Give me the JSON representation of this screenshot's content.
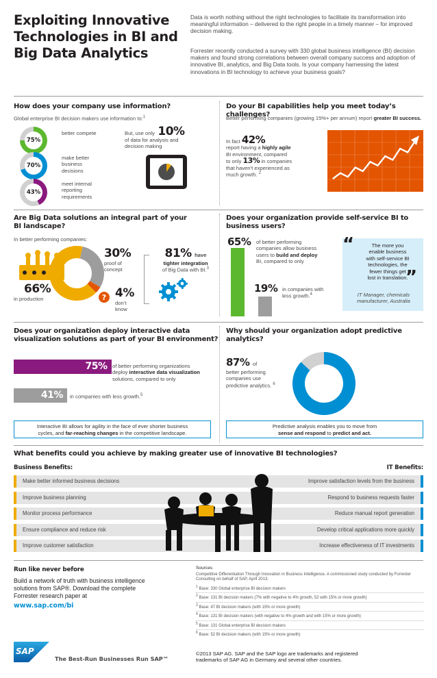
{
  "header": {
    "title_lines": [
      "Exploiting Innovative",
      "Technologies in BI and",
      "Big Data Analytics"
    ],
    "intro_1": "Data is worth nothing without the right technologies to facilitate its transformation into meaningful information – delivered to the right people in a timely manner – for improved decision making.",
    "intro_2": "Forrester recently conducted a survey with 330 global business intelligence (BI) decision makers and found strong correlations between overall company success and adoption of innovative BI, analytics, and Big Data tools. Is your company harnessing the latest innovations in BI technology to achieve your business goals?"
  },
  "s1": {
    "heading": "How does your company use information?",
    "sub": "Global enterprise BI decision makers use information to:",
    "sup": "1",
    "rings": [
      {
        "pct": "75%",
        "value": 75,
        "label": "better compete"
      },
      {
        "pct": "70%",
        "value": 70,
        "label": "make better business decisions"
      },
      {
        "pct": "43%",
        "value": 43,
        "label": "meet internal reporting requirements"
      }
    ],
    "but_prefix": "But, use only",
    "but_pct": "10%",
    "but_rest": "of data for analysis and decision making",
    "tablet_value": 10
  },
  "s2": {
    "heading": "Do your BI capabilities help you meet today’s challenges?",
    "sub_pre": "Better performing companies (growing 15%+ per annum) report",
    "sub_bold": "greater BI success.",
    "infact": "In fact",
    "pct1": "42%",
    "line1_pre": "report having a",
    "line1_bold": "highly agile",
    "line2": "BI environment, compared",
    "line3_pre": "to only",
    "pct2": "13%",
    "line3_post": "in companies",
    "line4": "that haven’t experienced as",
    "line5": "much growth.",
    "sup": "2",
    "trend": [
      4,
      7,
      5,
      10,
      8,
      13,
      11,
      16,
      14,
      20,
      18,
      24
    ]
  },
  "s3": {
    "heading_lines": [
      "Are Big Data solutions an integral part of your",
      "BI landscape?"
    ],
    "sub": "In better performing companies:",
    "pct_prod": "66%",
    "lbl_prod": "in production",
    "pct_poc": "30%",
    "lbl_poc_1": "proof of",
    "lbl_poc_2": "concept",
    "pct_dk": "4%",
    "lbl_dk_1": "don’t",
    "lbl_dk_2": "know",
    "pct_have": "81%",
    "have_word": "have",
    "have_bold": "tighter integration",
    "have_rest": "of Big Data with BI.",
    "sup": "3",
    "donut": [
      66,
      30,
      4
    ]
  },
  "s4": {
    "heading_lines": [
      "Does your organization provide self-service BI to",
      "business users?"
    ],
    "pct_a": "65%",
    "text_a_1": "of better performing",
    "text_a_2": "companies allow business",
    "text_a_3_pre": "users to",
    "text_a_3_bold": "build and deploy",
    "text_a_4": "BI, compared to only",
    "pct_b": "19%",
    "text_b_1": "in companies with",
    "text_b_2": "less growth.",
    "sup": "4",
    "bars": [
      65,
      19
    ],
    "quote_lines": [
      "The more you",
      "enable business",
      "with self-service BI",
      "technologies, the",
      "fewer things get",
      "lost in translation."
    ],
    "quote_author_1": "IT Manager, chemicals",
    "quote_author_2": "manufacturer, Australia"
  },
  "s5": {
    "heading_lines": [
      "Does your organization deploy interactive data",
      "visualization solutions as part of your BI environment?"
    ],
    "pct_a": "75%",
    "value_a": 75,
    "text_a_1": "of better performing organizations",
    "text_a_2_pre": "deploy",
    "text_a_2_bold": "interactive data visualization",
    "text_a_3": "solutions, compared to only",
    "pct_b": "41%",
    "value_b": 41,
    "text_b": "in companies with less growth.",
    "sup": "5",
    "callout_1": "Interactive BI allows for agility in the face of ever shorter business",
    "callout_2_pre": "cycles, and",
    "callout_2_bold": "far-reaching changes",
    "callout_2_post": "in the competitive landscape."
  },
  "s6": {
    "heading_lines": [
      "Why should your organization adopt predictive",
      "analytics?"
    ],
    "pct": "87%",
    "of": "of",
    "text_1": "better performing",
    "text_2": "companies use",
    "text_3": "predictive analytics.",
    "sup": "6",
    "donut_value": 87,
    "callout_1": "Predictive analysis enables you to move from",
    "callout_2_bold_a": "sense and respond",
    "callout_2_mid": "to",
    "callout_2_bold_b": "predict and act."
  },
  "benefits": {
    "heading": "What benefits could you achieve by making greater use of innovative BI technologies?",
    "business_title": "Business Benefits:",
    "it_title": "IT Benefits:",
    "business": [
      "Make better informed business decisions",
      "Improve business planning",
      "Monitor process performance",
      "Ensure compliance and reduce risk",
      "Improve customer satisfaction"
    ],
    "it": [
      "Improve satisfaction levels from the business",
      "Respond to business requests faster",
      "Reduce manual report generation",
      "Develop critical applications more quickly",
      "Increase effectiveness of IT investments"
    ]
  },
  "footer": {
    "run_title": "Run like never before",
    "run_text_1": "Build a network of truth with business intelligence",
    "run_text_2": "solutions from SAP®. Download the complete",
    "run_text_3": "Forrester research paper at",
    "run_link": "www.sap.com/bi",
    "sources_title": "Sources",
    "sources_intro": "Competitive Differentiation Through Innovation in Business Intelligence. A commissioned study conducted by Forrester Consulting on behalf of SAP, April 2013.",
    "sources": [
      {
        "n": "1",
        "t": "Base: 330 Global enterprise BI decision makers"
      },
      {
        "n": "2",
        "t": "Base: 131 BI decision makers (7% with negative to 4% growth, 52 with 15% or more growth)"
      },
      {
        "n": "3",
        "t": "Base: 47 BI decision makers (with 15% or more growth)"
      },
      {
        "n": "4",
        "t": "Base: 131 BI decision makers (with negative to 4% growth and with 15% or more growth)"
      },
      {
        "n": "5",
        "t": "Base: 131 Global enterprise BI decision makers"
      },
      {
        "n": "6",
        "t": "Base: 52 BI decision makers (with 15% or more growth)"
      }
    ],
    "logo_text": "SAP",
    "tagline": "The Best-Run Businesses Run SAP™",
    "copyright_1": "©2013 SAP AG. SAP and the SAP logo are trademarks and registered",
    "copyright_2": "trademarks of SAP AG in Germany and several other countries."
  },
  "colors": {
    "yellow": "#f0ab00",
    "green": "#5cb82e",
    "purple": "#8b1a7e",
    "blue": "#008fd3",
    "gray": "#9d9d9d",
    "lightgray": "#d0d0d0",
    "orange": "#e35500"
  }
}
